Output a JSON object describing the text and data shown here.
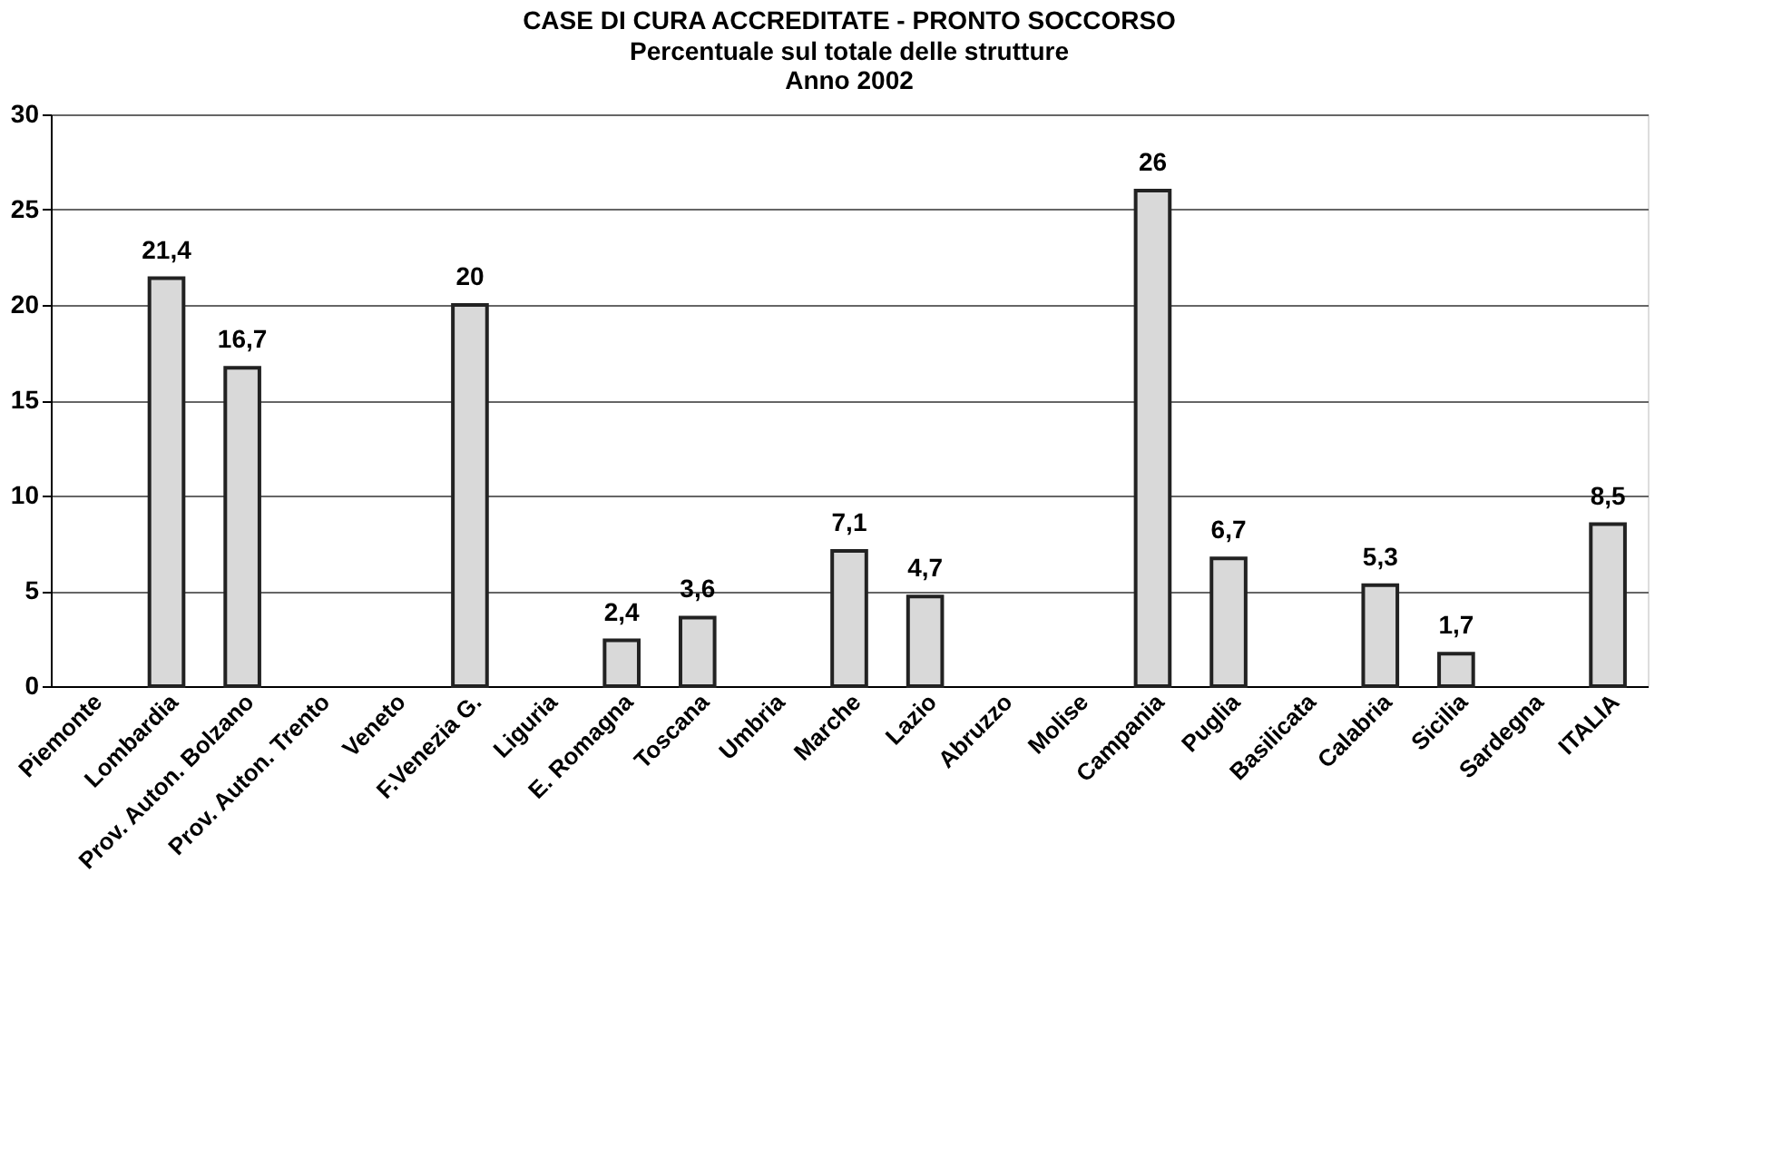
{
  "chart_data": {
    "type": "bar",
    "title": "CASE DI CURA ACCREDITATE - PRONTO SOCCORSO",
    "subtitle": "Percentuale sul totale delle strutture\nAnno 2002",
    "categories": [
      "Piemonte",
      "Lombardia",
      "Prov. Auton. Bolzano",
      "Prov. Auton. Trento",
      "Veneto",
      "F.Venezia G.",
      "Liguria",
      "E. Romagna",
      "Toscana",
      "Umbria",
      "Marche",
      "Lazio",
      "Abruzzo",
      "Molise",
      "Campania",
      "Puglia",
      "Basilicata",
      "Calabria",
      "Sicilia",
      "Sardegna",
      "ITALIA"
    ],
    "values": [
      null,
      21.4,
      16.7,
      null,
      null,
      20,
      null,
      2.4,
      3.6,
      null,
      7.1,
      4.7,
      null,
      null,
      26,
      6.7,
      null,
      5.3,
      1.7,
      null,
      8.5
    ],
    "value_labels": [
      null,
      "21,4",
      "16,7",
      null,
      null,
      "20",
      null,
      "2,4",
      "3,6",
      null,
      "7,1",
      "4,7",
      null,
      null,
      "26",
      "6,7",
      null,
      "5,3",
      "1,7",
      null,
      "8,5"
    ],
    "color": "#d9d9d9",
    "ylim": [
      0,
      30
    ],
    "yticks": [
      0,
      5,
      10,
      15,
      20,
      25,
      30
    ],
    "grid": "y"
  }
}
